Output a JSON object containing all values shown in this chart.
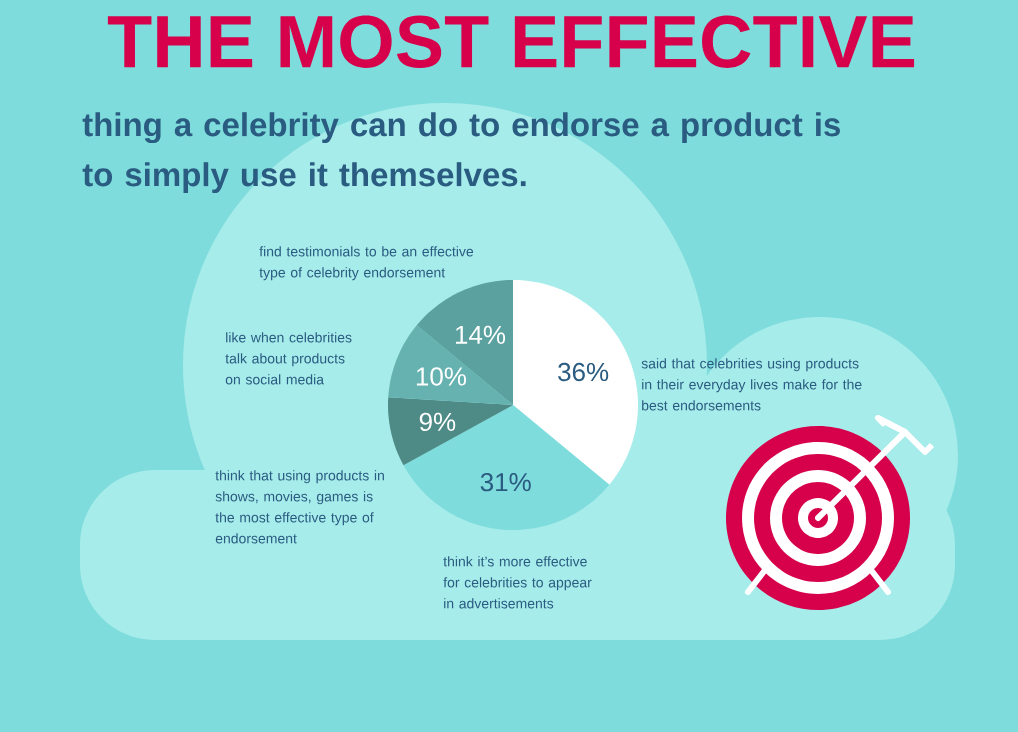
{
  "chart_data": {
    "type": "pie",
    "title": "THE MOST EFFECTIVE",
    "subtitle": "thing a celebrity can do to endorse a product is to simply use it themselves.",
    "categories": [
      "said that celebrities using products in their everyday lives make for the best endorsements",
      "think it’s more effective for celebrities to appear in advertisements",
      "think that using products in shows, movies, games is the most effective type of endorsement",
      "like when celebrities talk about products on social media",
      "find testimonials to be an effective type of celebrity endorsement"
    ],
    "values": [
      36,
      31,
      9,
      10,
      14
    ],
    "colors": [
      "#ffffff",
      "#7fdcdc",
      "#4e8a86",
      "#66b2b0",
      "#5aa19f"
    ],
    "value_labels": [
      "36%",
      "31%",
      "9%",
      "10%",
      "14%"
    ]
  }
}
